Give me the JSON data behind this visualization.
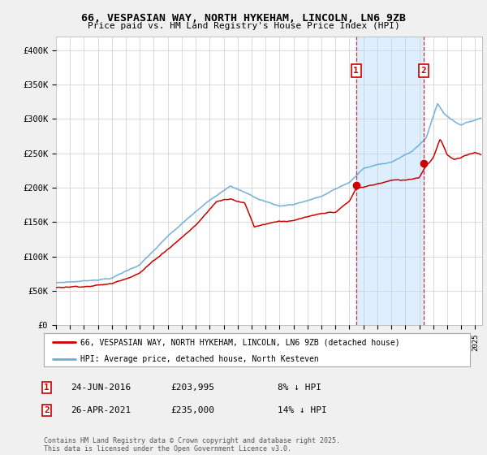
{
  "title": "66, VESPASIAN WAY, NORTH HYKEHAM, LINCOLN, LN6 9ZB",
  "subtitle": "Price paid vs. HM Land Registry's House Price Index (HPI)",
  "ylabel_ticks": [
    "£0",
    "£50K",
    "£100K",
    "£150K",
    "£200K",
    "£250K",
    "£300K",
    "£350K",
    "£400K"
  ],
  "ytick_values": [
    0,
    50000,
    100000,
    150000,
    200000,
    250000,
    300000,
    350000,
    400000
  ],
  "ylim": [
    0,
    420000
  ],
  "xlim_start": 1995,
  "xlim_end": 2025.5,
  "hpi_color": "#6baed6",
  "price_color": "#cc0000",
  "shade_color": "#ddeeff",
  "marker1_year": 2016.48,
  "marker1_price": 203995,
  "marker2_year": 2021.32,
  "marker2_price": 235000,
  "legend1": "66, VESPASIAN WAY, NORTH HYKEHAM, LINCOLN, LN6 9ZB (detached house)",
  "legend2": "HPI: Average price, detached house, North Kesteven",
  "annotation1_label": "1",
  "annotation1_date": "24-JUN-2016",
  "annotation1_price": "£203,995",
  "annotation1_pct": "8% ↓ HPI",
  "annotation2_label": "2",
  "annotation2_date": "26-APR-2021",
  "annotation2_price": "£235,000",
  "annotation2_pct": "14% ↓ HPI",
  "footer": "Contains HM Land Registry data © Crown copyright and database right 2025.\nThis data is licensed under the Open Government Licence v3.0.",
  "bg_color": "#f0f0f0",
  "plot_bg_color": "#ffffff"
}
